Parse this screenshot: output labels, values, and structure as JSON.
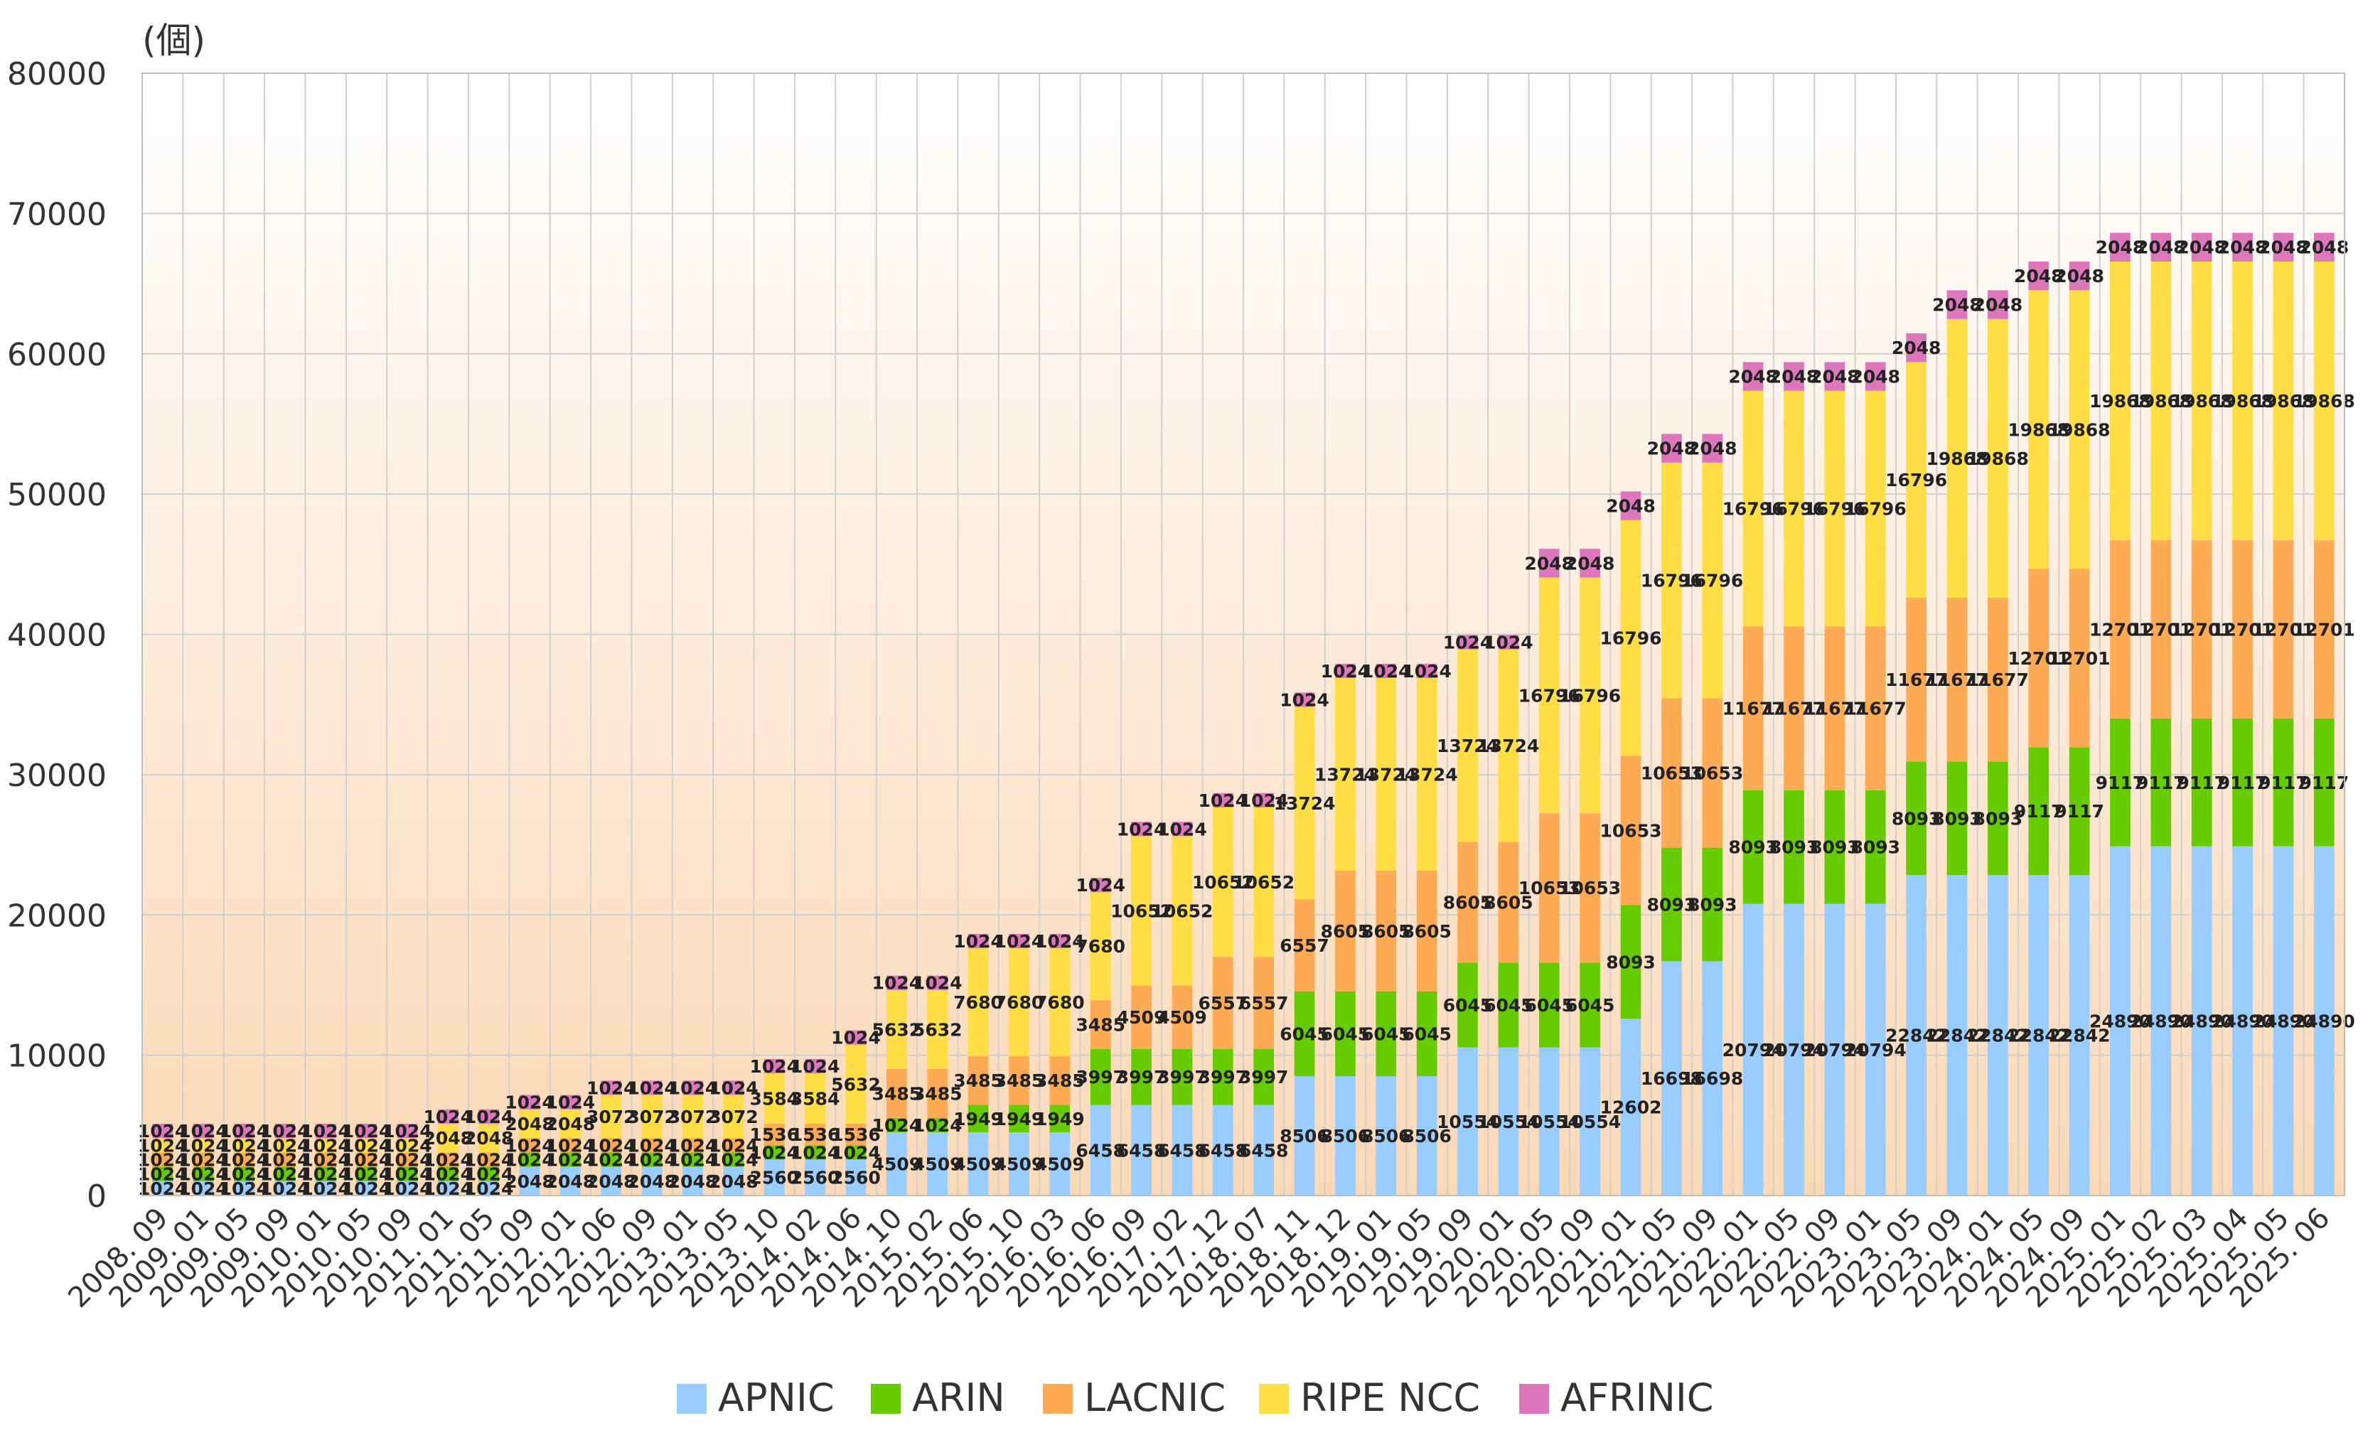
{
  "chart_data": {
    "type": "bar",
    "stacked": true,
    "unit_label": "(個)",
    "ylim": [
      0,
      80000
    ],
    "yticks": [
      0,
      10000,
      20000,
      30000,
      40000,
      50000,
      60000,
      70000,
      80000
    ],
    "grid": true,
    "legend_position": "bottom",
    "categories": [
      "2008. 09",
      "2009. 01",
      "2009. 05",
      "2009. 09",
      "2010. 01",
      "2010. 05",
      "2010. 09",
      "2011. 01",
      "2011. 05",
      "2011. 09",
      "2012. 01",
      "2012. 06",
      "2012. 09",
      "2013. 01",
      "2013. 05",
      "2013. 10",
      "2014. 02",
      "2014. 06",
      "2014. 10",
      "2015. 02",
      "2015. 06",
      "2015. 10",
      "2016. 03",
      "2016. 06",
      "2016. 09",
      "2017. 02",
      "2017. 12",
      "2018. 07",
      "2018. 11",
      "2018. 12",
      "2019. 01",
      "2019. 05",
      "2019. 09",
      "2020. 01",
      "2020. 05",
      "2020. 09",
      "2021. 01",
      "2021. 05",
      "2021. 09",
      "2022. 01",
      "2022. 05",
      "2022. 09",
      "2023. 01",
      "2023. 05",
      "2023. 09",
      "2024. 01",
      "2024. 05",
      "2024. 09",
      "2025. 01",
      "2025. 02",
      "2025. 03",
      "2025. 04",
      "2025. 05",
      "2025. 06"
    ],
    "series": [
      {
        "name": "APNIC",
        "color": "#99ccff",
        "values": [
          1024,
          1024,
          1024,
          1024,
          1024,
          1024,
          1024,
          1024,
          1024,
          2048,
          2048,
          2048,
          2048,
          2048,
          2048,
          2560,
          2560,
          2560,
          4509,
          4509,
          4509,
          4509,
          4509,
          6458,
          6458,
          6458,
          6458,
          6458,
          8506,
          8506,
          8506,
          8506,
          10554,
          10554,
          10554,
          10554,
          12602,
          16698,
          16698,
          20794,
          20794,
          20794,
          20794,
          22842,
          22842,
          22842,
          22842,
          22842,
          24890,
          24890,
          24890,
          24890,
          24890,
          24890
        ]
      },
      {
        "name": "ARIN",
        "color": "#66cc00",
        "values": [
          1024,
          1024,
          1024,
          1024,
          1024,
          1024,
          1024,
          1024,
          1024,
          1024,
          1024,
          1024,
          1024,
          1024,
          1024,
          1024,
          1024,
          1024,
          1024,
          1024,
          1949,
          1949,
          1949,
          3997,
          3997,
          3997,
          3997,
          3997,
          6045,
          6045,
          6045,
          6045,
          6045,
          6045,
          6045,
          6045,
          8093,
          8093,
          8093,
          8093,
          8093,
          8093,
          8093,
          8093,
          8093,
          8093,
          9117,
          9117,
          9117,
          9117,
          9117,
          9117,
          9117,
          9117
        ]
      },
      {
        "name": "LACNIC",
        "color": "#ffaa55",
        "values": [
          1024,
          1024,
          1024,
          1024,
          1024,
          1024,
          1024,
          1024,
          1024,
          1024,
          1024,
          1024,
          1024,
          1024,
          1024,
          1536,
          1536,
          1536,
          3485,
          3485,
          3485,
          3485,
          3485,
          3485,
          4509,
          4509,
          6557,
          6557,
          6557,
          8605,
          8605,
          8605,
          8605,
          8605,
          10653,
          10653,
          10653,
          10653,
          10653,
          11677,
          11677,
          11677,
          11677,
          11677,
          11677,
          11677,
          12701,
          12701,
          12701,
          12701,
          12701,
          12701,
          12701,
          12701
        ]
      },
      {
        "name": "RIPE NCC",
        "color": "#ffdd44",
        "values": [
          1024,
          1024,
          1024,
          1024,
          1024,
          1024,
          1024,
          2048,
          2048,
          2048,
          2048,
          3072,
          3072,
          3072,
          3072,
          3584,
          3584,
          5632,
          5632,
          5632,
          7680,
          7680,
          7680,
          7680,
          10652,
          10652,
          10652,
          10652,
          13724,
          13724,
          13724,
          13724,
          13724,
          13724,
          16796,
          16796,
          16796,
          16796,
          16796,
          16796,
          16796,
          16796,
          16796,
          16796,
          19868,
          19868,
          19868,
          19868,
          19868,
          19868,
          19868,
          19868,
          19868,
          19868
        ]
      },
      {
        "name": "AFRINIC",
        "color": "#dd77bb",
        "values": [
          1024,
          1024,
          1024,
          1024,
          1024,
          1024,
          1024,
          1024,
          1024,
          1024,
          1024,
          1024,
          1024,
          1024,
          1024,
          1024,
          1024,
          1024,
          1024,
          1024,
          1024,
          1024,
          1024,
          1024,
          1024,
          1024,
          1024,
          1024,
          1024,
          1024,
          1024,
          1024,
          1024,
          1024,
          2048,
          2048,
          2048,
          2048,
          2048,
          2048,
          2048,
          2048,
          2048,
          2048,
          2048,
          2048,
          2048,
          2048,
          2048,
          2048,
          2048,
          2048,
          2048,
          2048
        ]
      }
    ]
  }
}
